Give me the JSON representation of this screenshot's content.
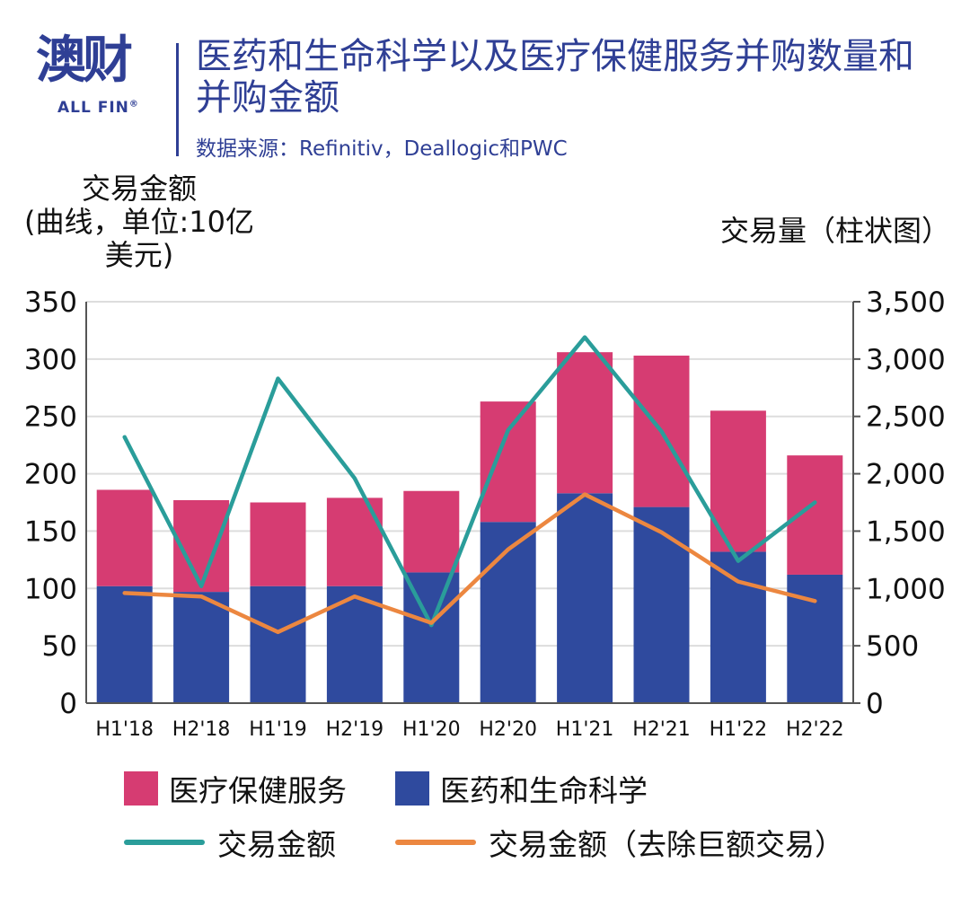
{
  "logo": {
    "cn": "澳财",
    "en": "ALL FIN",
    "reg": "®"
  },
  "title": "医药和生命科学以及医疗保健服务并购数量和并购金额",
  "source": "数据来源：Refinitiv，Deallogic和PWC",
  "colors": {
    "healthcare": "#d63c72",
    "pharma": "#2f4a9e",
    "value_line": "#2a9d9a",
    "value_ex_mega_line": "#ec8740",
    "brand": "#2f3f95"
  },
  "chart_data": {
    "type": "bar",
    "stacked": true,
    "categories": [
      "H1'18",
      "H2'18",
      "H1'19",
      "H2'19",
      "H1'20",
      "H2'20",
      "H1'21",
      "H2'21",
      "H1'22",
      "H2'22"
    ],
    "left_axis": {
      "label_lines": [
        "交易金额",
        "(曲线，单位:10亿",
        "美元)"
      ],
      "ylim": [
        0,
        350
      ],
      "ticks": [
        "0",
        "50",
        "100",
        "150",
        "200",
        "250",
        "300",
        "350"
      ]
    },
    "right_axis": {
      "label": "交易量（柱状图）",
      "ylim": [
        0,
        3500
      ],
      "ticks": [
        "0",
        "500",
        "1,000",
        "1,500",
        "2,000",
        "2,500",
        "3,000",
        "3,500"
      ]
    },
    "bar_series": [
      {
        "name": "医药和生命科学",
        "axis": "right",
        "values": [
          1020,
          970,
          1020,
          1020,
          1140,
          1580,
          1830,
          1710,
          1320,
          1120
        ]
      },
      {
        "name": "医疗保健服务",
        "axis": "right",
        "values": [
          840,
          800,
          730,
          770,
          710,
          1050,
          1230,
          1320,
          1230,
          1040
        ]
      }
    ],
    "line_series": [
      {
        "name": "交易金额",
        "axis": "left",
        "values": [
          232,
          102,
          283,
          196,
          68,
          238,
          319,
          237,
          124,
          175
        ]
      },
      {
        "name": "交易金额（去除巨额交易）",
        "axis": "left",
        "values": [
          96,
          93,
          62,
          93,
          70,
          134,
          182,
          149,
          106,
          89
        ]
      }
    ],
    "grid": true,
    "legend": "bottom"
  },
  "legend": {
    "healthcare": "医疗保健服务",
    "pharma": "医药和生命科学",
    "value": "交易金额",
    "value_ex_mega": "交易金额（去除巨额交易）"
  }
}
